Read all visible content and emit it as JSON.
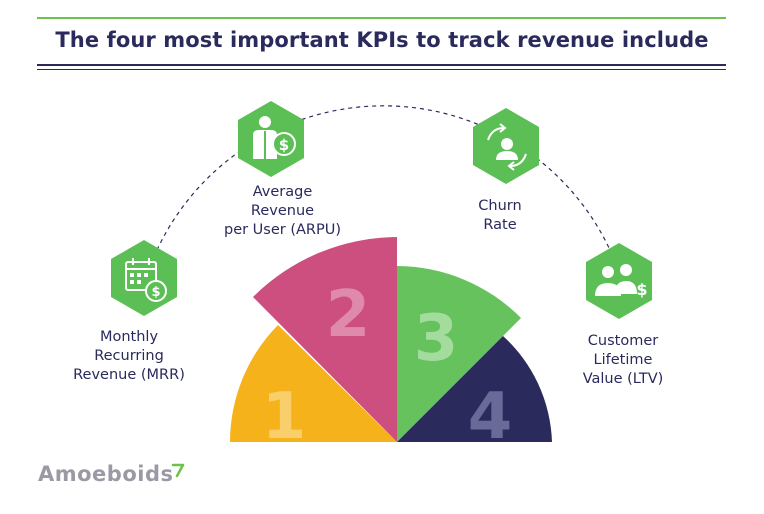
{
  "title": "The four most important KPIs to track revenue include",
  "kpis": [
    {
      "number": "1",
      "label": "Monthly\nRecurring\nRevenue (MRR)",
      "icon": "calendar-dollar-icon",
      "color": "#f5b21b"
    },
    {
      "number": "2",
      "label": "Average\nRevenue\nper User (ARPU)",
      "icon": "user-dollar-icon",
      "color": "#cd4f7f"
    },
    {
      "number": "3",
      "label": "Churn\nRate",
      "icon": "user-cycle-icon",
      "color": "#66c25c"
    },
    {
      "number": "4",
      "label": "Customer\nLifetime\nValue (LTV)",
      "icon": "team-dollar-icon",
      "color": "#2a2a5c"
    }
  ],
  "brand": "Amoeboids",
  "colors": {
    "accent_green": "#6cc24a",
    "navy": "#2a2a5c",
    "hex_green": "#5cbf55"
  }
}
